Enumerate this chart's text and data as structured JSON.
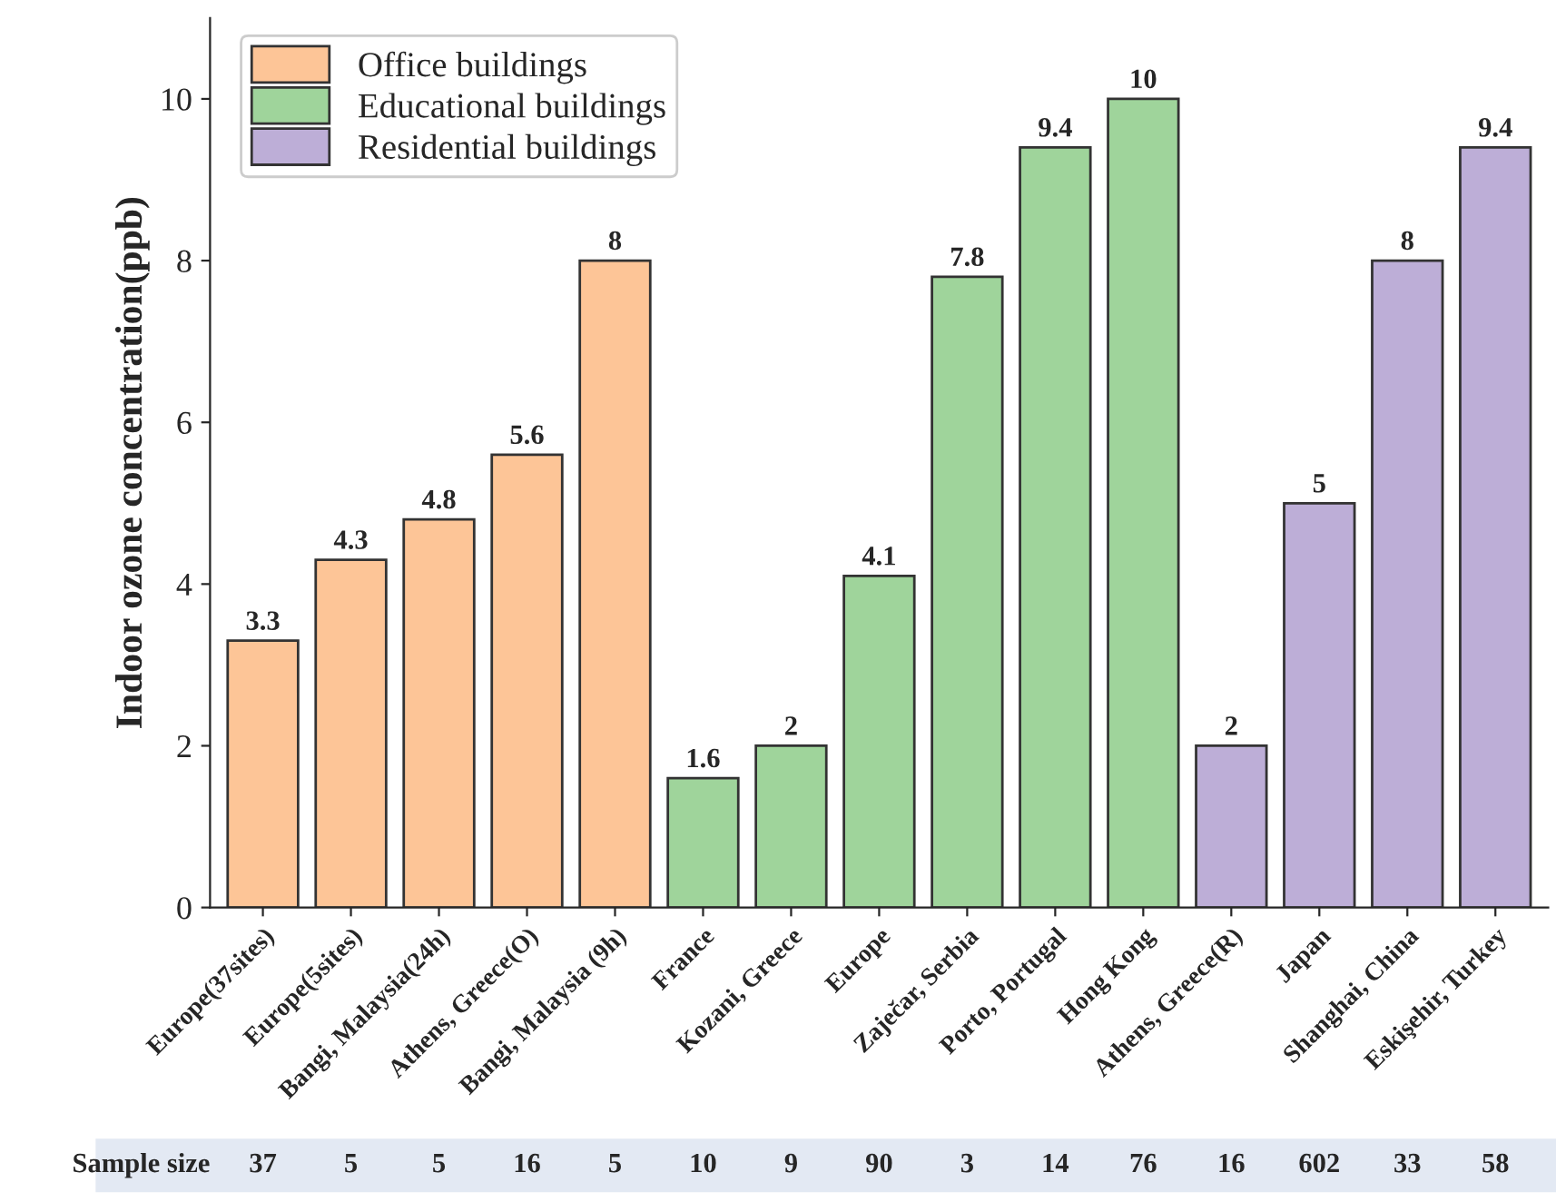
{
  "chart_data": {
    "type": "bar",
    "ylabel": "Indoor ozone concentration(ppb)",
    "categories": [
      "Europe(37sites)",
      "Europe(5sites)",
      "Bangi, Malaysia(24h)",
      "Athens, Greece(O)",
      "Bangi, Malaysia (9h)",
      "France",
      "Kozani, Greece",
      "Europe",
      "Zaječar, Serbia",
      "Porto, Portugal",
      "Hong Kong",
      "Athens, Greece(R)",
      "Japan",
      "Shanghai, China",
      "Eskişehir, Turkey"
    ],
    "series": [
      {
        "name": "Office buildings",
        "color": "#fdc597",
        "values": [
          3.3,
          4.3,
          4.8,
          5.6,
          8,
          null,
          null,
          null,
          null,
          null,
          null,
          null,
          null,
          null,
          null
        ]
      },
      {
        "name": "Educational buildings",
        "color": "#9fd49b",
        "values": [
          null,
          null,
          null,
          null,
          null,
          1.6,
          2,
          4.1,
          7.8,
          9.4,
          10,
          null,
          null,
          null,
          null
        ]
      },
      {
        "name": "Residential buildings",
        "color": "#bdaed7",
        "values": [
          null,
          null,
          null,
          null,
          null,
          null,
          null,
          null,
          null,
          null,
          null,
          2,
          5,
          8,
          9.4
        ]
      }
    ],
    "ylim": [
      0,
      11
    ],
    "yticks": [
      0,
      2,
      4,
      6,
      8,
      10
    ],
    "data_labels": true,
    "legend": "top left",
    "grid": false,
    "annotations": [
      "Sample size",
      "37",
      "5",
      "5",
      "16",
      "5",
      "10",
      "9",
      "90",
      "3",
      "14",
      "76",
      "16",
      "602",
      "33",
      "58"
    ]
  }
}
